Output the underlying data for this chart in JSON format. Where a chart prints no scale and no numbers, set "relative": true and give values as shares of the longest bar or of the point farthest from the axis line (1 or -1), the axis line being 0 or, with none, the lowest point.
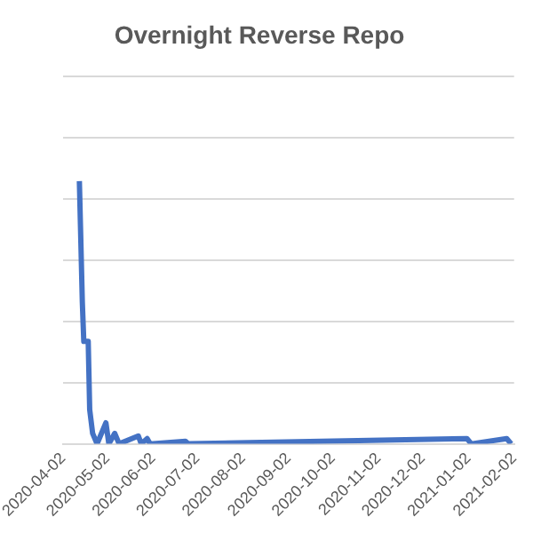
{
  "chart_data": {
    "type": "line",
    "title": "Overnight Reverse Repo",
    "relative": true,
    "grid": "y",
    "legend": false,
    "marker": "none",
    "line_style": "solid",
    "x": [
      "2020-04-13",
      "2020-04-15",
      "2020-04-16",
      "2020-04-19",
      "2020-04-20",
      "2020-04-22",
      "2020-04-25",
      "2020-05-01",
      "2020-05-03",
      "2020-05-07",
      "2020-05-10",
      "2020-05-23",
      "2020-05-25",
      "2020-05-29",
      "2020-05-31",
      "2020-06-24",
      "2020-06-26",
      "2021-01-01",
      "2021-01-04",
      "2021-01-28",
      "2021-01-31"
    ],
    "series": [
      {
        "color": "#4472c4",
        "values": [
          1.0,
          0.54,
          0.39,
          0.39,
          0.13,
          0.04,
          0,
          0.08,
          0,
          0.04,
          0,
          0.03,
          0,
          0.02,
          0,
          0.01,
          0,
          0.02,
          0,
          0.02,
          0
        ]
      }
    ],
    "xlim": [
      "2020-04-02",
      "2021-02-02"
    ],
    "xticks": [
      "2020-04-02",
      "2020-05-02",
      "2020-06-02",
      "2020-07-02",
      "2020-08-02",
      "2020-09-02",
      "2020-10-02",
      "2020-11-02",
      "2020-12-02",
      "2021-01-02",
      "2021-02-02"
    ]
  }
}
